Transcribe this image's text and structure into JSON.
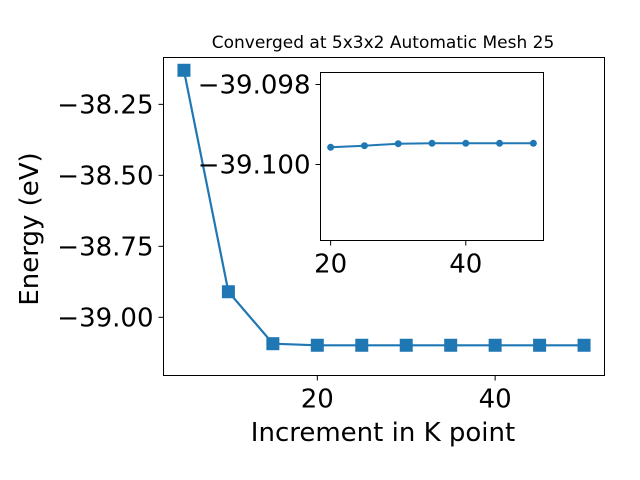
{
  "chart_data": [
    {
      "type": "line",
      "title": "Converged at 5x3x2 Automatic Mesh 25",
      "xlabel": "Increment in K point",
      "ylabel": "Energy (eV)",
      "xlim": [
        2.7,
        52.3
      ],
      "ylim": [
        -39.205,
        -38.085
      ],
      "xticks": [
        20,
        40
      ],
      "xtick_labels": [
        "20",
        "40"
      ],
      "yticks": [
        -38.25,
        -38.5,
        -38.75,
        -39.0
      ],
      "ytick_labels": [
        "−38.25",
        "−38.50",
        "−38.75",
        "−39.00"
      ],
      "grid": false,
      "marker": "square",
      "color": "#1f77b4",
      "series": [
        {
          "x": [
            5,
            10,
            15,
            20,
            25,
            30,
            35,
            40,
            45,
            50
          ],
          "y": [
            -38.13,
            -38.91,
            -39.093,
            -39.0985,
            -39.0985,
            -39.0985,
            -39.0985,
            -39.0985,
            -39.0985,
            -39.0985
          ]
        }
      ]
    },
    {
      "type": "line",
      "title": "",
      "xlabel": "",
      "ylabel": "",
      "xlim": [
        18.5,
        51.5
      ],
      "ylim": [
        -39.1019,
        -39.0977
      ],
      "xticks": [
        20,
        40
      ],
      "xtick_labels": [
        "20",
        "40"
      ],
      "yticks": [
        -39.1,
        -39.098
      ],
      "ytick_labels": [
        "−39.100",
        "−39.098"
      ],
      "grid": false,
      "marker": "circle",
      "color": "#1f77b4",
      "series": [
        {
          "x": [
            20,
            25,
            30,
            35,
            40,
            45,
            50
          ],
          "y": [
            -39.09957,
            -39.09953,
            -39.09948,
            -39.09947,
            -39.09947,
            -39.09947,
            -39.09947
          ]
        }
      ]
    }
  ]
}
